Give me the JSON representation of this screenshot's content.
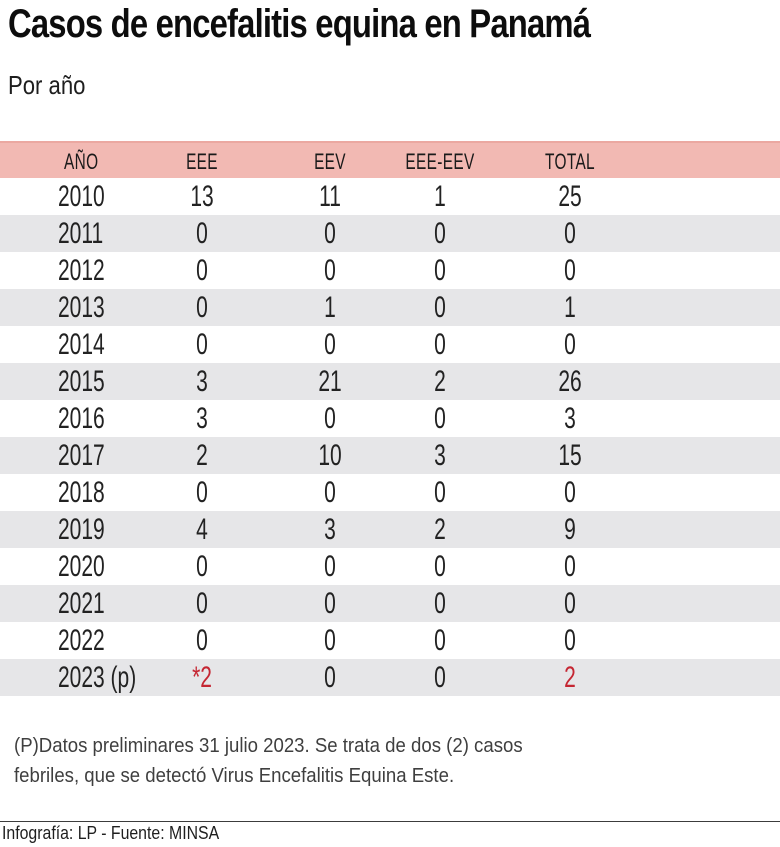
{
  "title": "Casos de encefalitis equina en Panamá",
  "subtitle": "Por año",
  "chart_data": {
    "type": "table",
    "columns": [
      "AÑO",
      "EEE",
      "EEV",
      "EEE-EEV",
      "TOTAL"
    ],
    "rows": [
      {
        "cells": [
          "2010",
          "13",
          "11",
          "1",
          "25"
        ],
        "red_cols": []
      },
      {
        "cells": [
          "2011",
          "0",
          "0",
          "0",
          "0"
        ],
        "red_cols": []
      },
      {
        "cells": [
          "2012",
          "0",
          "0",
          "0",
          "0"
        ],
        "red_cols": []
      },
      {
        "cells": [
          "2013",
          "0",
          "1",
          "0",
          "1"
        ],
        "red_cols": []
      },
      {
        "cells": [
          "2014",
          "0",
          "0",
          "0",
          "0"
        ],
        "red_cols": []
      },
      {
        "cells": [
          "2015",
          "3",
          "21",
          "2",
          "26"
        ],
        "red_cols": []
      },
      {
        "cells": [
          "2016",
          "3",
          "0",
          "0",
          "3"
        ],
        "red_cols": []
      },
      {
        "cells": [
          "2017",
          "2",
          "10",
          "3",
          "15"
        ],
        "red_cols": []
      },
      {
        "cells": [
          "2018",
          "0",
          "0",
          "0",
          "0"
        ],
        "red_cols": []
      },
      {
        "cells": [
          "2019",
          "4",
          "3",
          "2",
          "9"
        ],
        "red_cols": []
      },
      {
        "cells": [
          "2020",
          "0",
          "0",
          "0",
          "0"
        ],
        "red_cols": []
      },
      {
        "cells": [
          "2021",
          "0",
          "0",
          "0",
          "0"
        ],
        "red_cols": []
      },
      {
        "cells": [
          "2022",
          "0",
          "0",
          "0",
          "0"
        ],
        "red_cols": []
      },
      {
        "cells": [
          "2023 (p)",
          "*2",
          "0",
          "0",
          "2"
        ],
        "red_cols": [
          1,
          4
        ]
      }
    ],
    "title": "Casos de encefalitis equina en Panamá",
    "subtitle": "Por año"
  },
  "footnote": {
    "line1": "(P)Datos preliminares 31 julio 2023. Se trata de dos (2) casos",
    "line2": "febriles, que se detectó Virus Encefalitis Equina Este."
  },
  "credit": {
    "text": "Infografía: LP - Fuente: MINSA"
  },
  "colors": {
    "header_bg": "#f2b9b3",
    "header_border": "#eba8a1",
    "row_alt_bg": "#e6e6e8",
    "accent_red": "#c52632",
    "text": "#222222"
  }
}
